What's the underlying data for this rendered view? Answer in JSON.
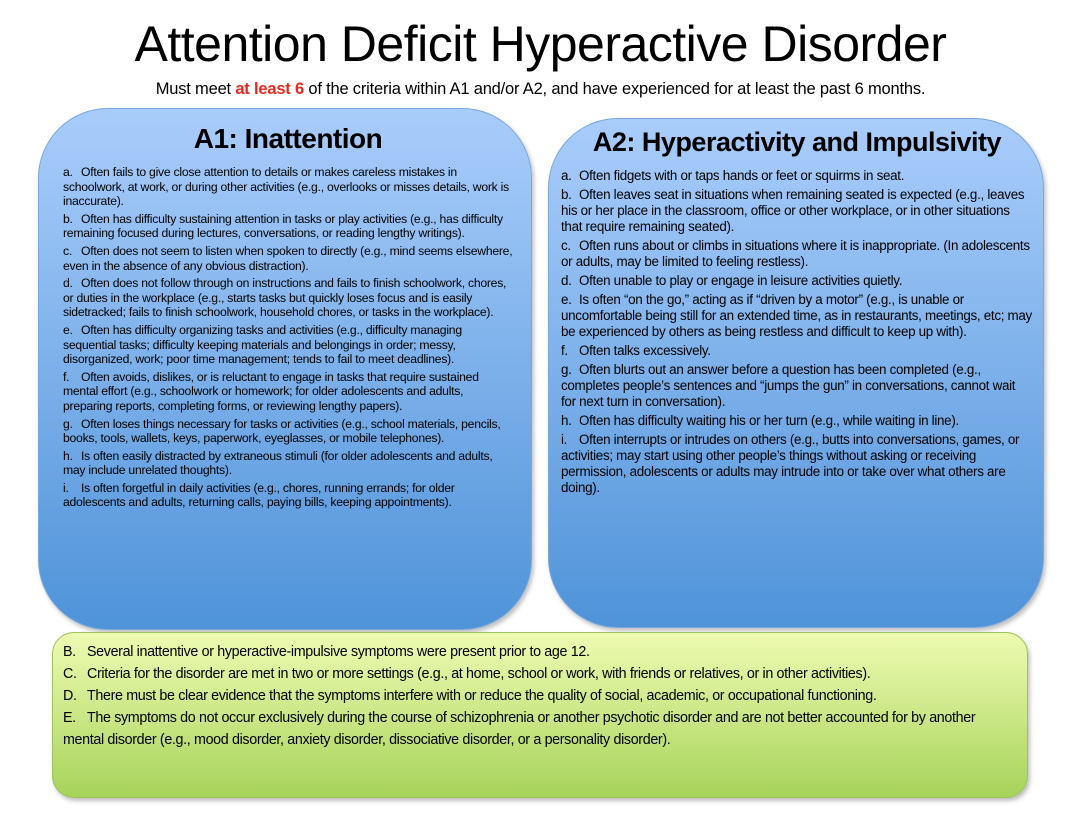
{
  "title": "Attention Deficit Hyperactive Disorder",
  "subtitle": {
    "before": "Must meet ",
    "highlight": "at least 6",
    "after": " of the criteria within A1 and/or A2, and have experienced for at least the past 6 months.",
    "highlight_color": "#e8281f"
  },
  "a1": {
    "heading": "A1: Inattention",
    "items": [
      {
        "label": "a.",
        "text": "Often fails to give close attention to details or makes careless mistakes in schoolwork, at work, or during other activities (e.g., overlooks or misses details, work is inaccurate)."
      },
      {
        "label": "b.",
        "text": "Often has difficulty sustaining attention in tasks or play activities (e.g., has difficulty remaining focused during lectures, conversations, or reading lengthy writings)."
      },
      {
        "label": "c.",
        "text": "Often does not seem to listen when spoken to directly (e.g., mind seems elsewhere, even in the absence of any obvious distraction)."
      },
      {
        "label": "d.",
        "text": "Often does not follow through on instructions and fails to finish schoolwork, chores, or duties in the workplace (e.g., starts tasks but quickly loses focus and is easily sidetracked;  fails to finish schoolwork, household chores, or tasks in the workplace)."
      },
      {
        "label": "e.",
        "text": "Often has difficulty organizing tasks and activities (e.g., difficulty managing sequential tasks; difficulty keeping materials and belongings in order; messy, disorganized, work; poor time management; tends to fail to meet deadlines)."
      },
      {
        "label": "f.",
        "text": "Often avoids, dislikes, or is reluctant to engage in tasks that require sustained mental effort (e.g., schoolwork or homework; for older adolescents and adults, preparing reports, completing forms, or reviewing lengthy papers)."
      },
      {
        "label": "g.",
        "text": "Often loses things necessary for tasks or activities (e.g., school materials, pencils, books, tools, wallets, keys, paperwork, eyeglasses, or mobile telephones)."
      },
      {
        "label": "h.",
        "text": "Is often easily distracted by extraneous stimuli (for older adolescents and adults, may include unrelated thoughts)."
      },
      {
        "label": "i.",
        "text": "Is often forgetful in daily activities (e.g., chores, running errands; for older adolescents and adults, returning calls, paying bills, keeping appointments)."
      }
    ]
  },
  "a2": {
    "heading": "A2: Hyperactivity and Impulsivity",
    "items": [
      {
        "label": "a.",
        "text": "Often fidgets with or taps hands or feet or squirms in seat."
      },
      {
        "label": "b.",
        "text": "Often leaves seat in situations when remaining seated is expected (e.g., leaves his or her place in the classroom, office or other workplace, or in other situations that require remaining seated)."
      },
      {
        "label": "c.",
        "text": "Often runs about or climbs in situations where it is inappropriate. (In adolescents or adults, may be limited to feeling restless)."
      },
      {
        "label": "d.",
        "text": "Often unable to play or engage in leisure activities quietly."
      },
      {
        "label": "e.",
        "text": "Is often “on the go,” acting as if “driven by a motor” (e.g., is unable or uncomfortable being still for an extended time, as in restaurants, meetings, etc; may be experienced by others as being restless and difficult to keep up with)."
      },
      {
        "label": "f.",
        "text": "Often talks excessively."
      },
      {
        "label": "g.",
        "text": "Often blurts out an answer before a question has been completed (e.g., completes people’s sentences and “jumps the gun” in conversations, cannot wait for next turn in conversation)."
      },
      {
        "label": "h.",
        "text": "Often has difficulty waiting his or her turn (e.g., while waiting in line)."
      },
      {
        "label": "i.",
        "text": "Often interrupts or intrudes on others (e.g., butts into conversations, games, or activities; may start using other people’s things without asking or receiving permission, adolescents or adults may intrude into or take over what others are doing)."
      }
    ]
  },
  "other": {
    "items": [
      {
        "label": "B.",
        "text": "Several inattentive or hyperactive-impulsive symptoms were present prior to age 12."
      },
      {
        "label": "C.",
        "text": "Criteria for the disorder are met in two or more settings (e.g., at home, school or work, with friends or relatives, or in other activities)."
      },
      {
        "label": "D.",
        "text": "There must be clear evidence that the symptoms interfere with or reduce the quality of social, academic, or occupational functioning."
      },
      {
        "label": "E.",
        "text": "The symptoms do not occur exclusively during the course of schizophrenia or another psychotic disorder and are not better accounted for by another mental disorder (e.g., mood disorder, anxiety disorder, dissociative disorder, or a personality disorder)."
      }
    ]
  },
  "colors": {
    "blue_top": "#a9cdfb",
    "blue_bottom": "#4f93d9",
    "green_top": "#eefbb2",
    "green_bottom": "#a7d35a"
  }
}
